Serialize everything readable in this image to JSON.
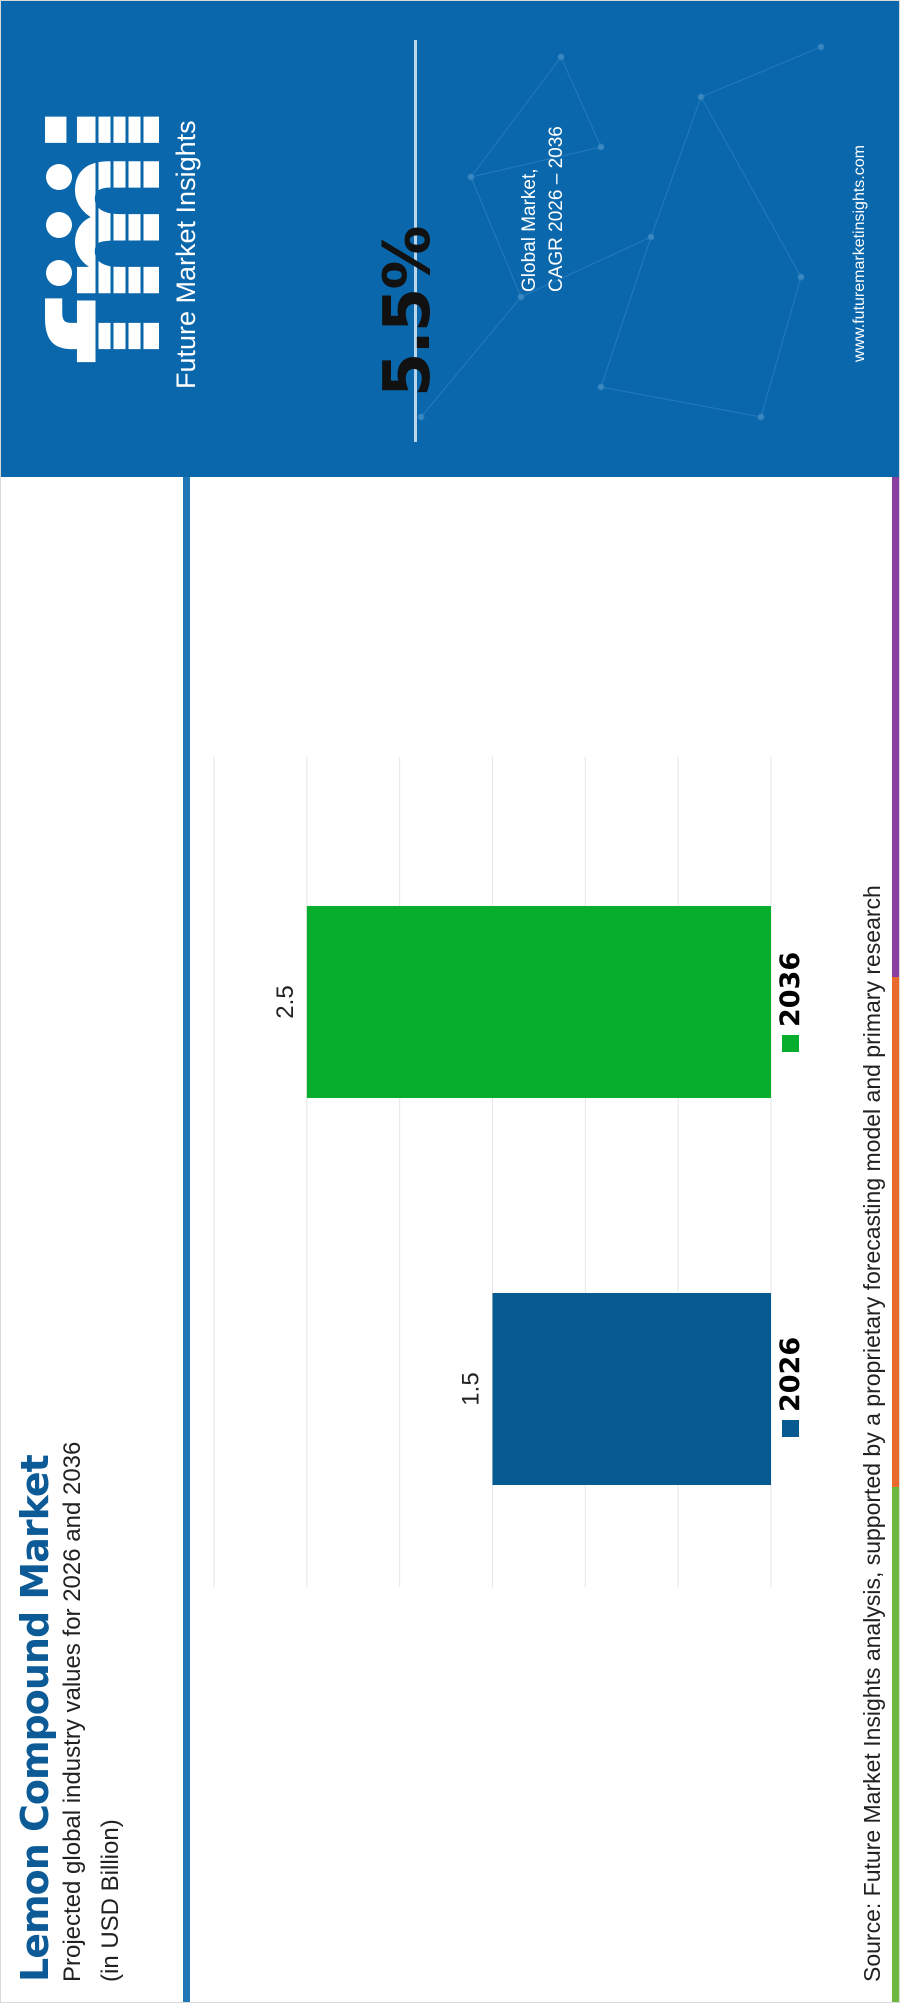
{
  "title": "Lemon Compound Market",
  "subtitle": "Projected global industry values for 2026 and 2036",
  "unit": "(in USD Billion)",
  "source": "Source: Future Market Insights analysis, supported by a proprietary forecasting model and primary research",
  "colors": {
    "title": "#0d5b96",
    "accent_line": "#1f77b6",
    "panel": "#0a67ac",
    "bar_2026": "#045a91",
    "bar_2036": "#07ae2d",
    "strip": [
      "#6db93f",
      "#ea6a2e",
      "#8a3f9e"
    ]
  },
  "chart_data": {
    "type": "bar",
    "categories": [
      "2026",
      "2036"
    ],
    "values": [
      1.5,
      2.5
    ],
    "data_labels": [
      "1.5",
      "2.5"
    ],
    "legend": [
      "2026",
      "2036"
    ],
    "legend_position": "bottom",
    "grid": true,
    "ylim": [
      0,
      3
    ],
    "xlabel": "",
    "ylabel": ""
  },
  "panel": {
    "logo_wordmark": "fmi",
    "logo_text": "Future Market Insights",
    "cagr_value": "5.5%",
    "caption_line1": "Global Market,",
    "caption_line2": "CAGR 2026 – 2036",
    "url": "www.futuremarketinsights.com"
  }
}
